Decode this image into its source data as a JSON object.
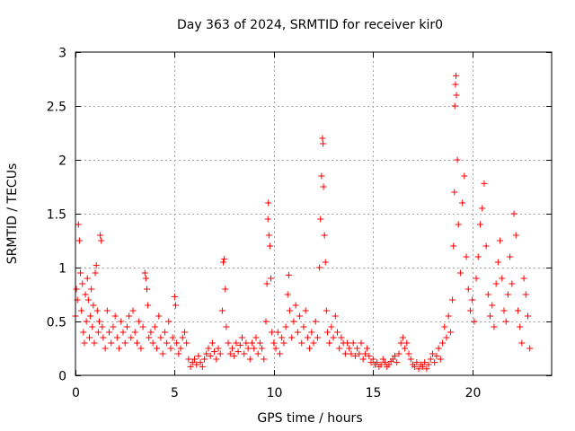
{
  "chart_data": {
    "type": "scatter",
    "title": "Day 363 of 2024, SRMTID for receiver kir0",
    "xlabel": "GPS time / hours",
    "ylabel": "SRMTID / TECUs",
    "xlim": [
      0,
      24
    ],
    "ylim": [
      0,
      3
    ],
    "xticks": [
      0,
      5,
      10,
      15,
      20
    ],
    "yticks": [
      0,
      0.5,
      1,
      1.5,
      2,
      2.5,
      3
    ],
    "xtick_labels": [
      "0",
      "5",
      "10",
      "15",
      "20"
    ],
    "ytick_labels": [
      "0",
      "0.5",
      "1",
      "1.5",
      "2",
      "2.5",
      "3"
    ],
    "grid": true,
    "marker": "+",
    "series": [
      {
        "name": "SRMTID",
        "color": "#ff0000",
        "points": [
          [
            0.0,
            0.55
          ],
          [
            0.05,
            0.8
          ],
          [
            0.1,
            0.7
          ],
          [
            0.15,
            1.4
          ],
          [
            0.2,
            1.25
          ],
          [
            0.25,
            0.95
          ],
          [
            0.3,
            0.6
          ],
          [
            0.35,
            0.85
          ],
          [
            0.4,
            0.4
          ],
          [
            0.45,
            0.3
          ],
          [
            0.5,
            0.75
          ],
          [
            0.55,
            0.5
          ],
          [
            0.6,
            0.9
          ],
          [
            0.65,
            0.7
          ],
          [
            0.7,
            0.35
          ],
          [
            0.75,
            0.55
          ],
          [
            0.8,
            0.8
          ],
          [
            0.85,
            0.45
          ],
          [
            0.9,
            0.65
          ],
          [
            0.95,
            0.3
          ],
          [
            1.0,
            0.95
          ],
          [
            1.05,
            1.02
          ],
          [
            1.1,
            0.6
          ],
          [
            1.15,
            0.4
          ],
          [
            1.2,
            0.5
          ],
          [
            1.25,
            1.3
          ],
          [
            1.3,
            1.25
          ],
          [
            1.35,
            0.45
          ],
          [
            1.4,
            0.35
          ],
          [
            1.5,
            0.25
          ],
          [
            1.6,
            0.6
          ],
          [
            1.7,
            0.4
          ],
          [
            1.8,
            0.3
          ],
          [
            1.9,
            0.45
          ],
          [
            2.0,
            0.55
          ],
          [
            2.1,
            0.35
          ],
          [
            2.2,
            0.25
          ],
          [
            2.3,
            0.5
          ],
          [
            2.4,
            0.4
          ],
          [
            2.5,
            0.3
          ],
          [
            2.6,
            0.45
          ],
          [
            2.7,
            0.55
          ],
          [
            2.8,
            0.35
          ],
          [
            2.9,
            0.6
          ],
          [
            3.0,
            0.4
          ],
          [
            3.1,
            0.3
          ],
          [
            3.2,
            0.5
          ],
          [
            3.3,
            0.25
          ],
          [
            3.4,
            0.45
          ],
          [
            3.5,
            0.95
          ],
          [
            3.55,
            0.9
          ],
          [
            3.6,
            0.8
          ],
          [
            3.65,
            0.65
          ],
          [
            3.7,
            0.35
          ],
          [
            3.8,
            0.4
          ],
          [
            3.9,
            0.3
          ],
          [
            4.0,
            0.45
          ],
          [
            4.1,
            0.25
          ],
          [
            4.2,
            0.55
          ],
          [
            4.3,
            0.35
          ],
          [
            4.4,
            0.2
          ],
          [
            4.5,
            0.4
          ],
          [
            4.6,
            0.3
          ],
          [
            4.7,
            0.5
          ],
          [
            4.8,
            0.25
          ],
          [
            4.9,
            0.35
          ],
          [
            5.0,
            0.73
          ],
          [
            5.05,
            0.65
          ],
          [
            5.1,
            0.3
          ],
          [
            5.2,
            0.2
          ],
          [
            5.3,
            0.25
          ],
          [
            5.4,
            0.35
          ],
          [
            5.5,
            0.4
          ],
          [
            5.6,
            0.3
          ],
          [
            5.7,
            0.15
          ],
          [
            5.8,
            0.08
          ],
          [
            5.9,
            0.12
          ],
          [
            6.0,
            0.15
          ],
          [
            6.1,
            0.1
          ],
          [
            6.2,
            0.18
          ],
          [
            6.3,
            0.12
          ],
          [
            6.4,
            0.08
          ],
          [
            6.5,
            0.15
          ],
          [
            6.6,
            0.2
          ],
          [
            6.7,
            0.25
          ],
          [
            6.8,
            0.18
          ],
          [
            6.9,
            0.3
          ],
          [
            7.0,
            0.22
          ],
          [
            7.1,
            0.15
          ],
          [
            7.2,
            0.25
          ],
          [
            7.3,
            0.2
          ],
          [
            7.4,
            0.6
          ],
          [
            7.45,
            1.05
          ],
          [
            7.5,
            1.08
          ],
          [
            7.55,
            0.8
          ],
          [
            7.6,
            0.45
          ],
          [
            7.7,
            0.3
          ],
          [
            7.8,
            0.2
          ],
          [
            7.9,
            0.25
          ],
          [
            8.0,
            0.18
          ],
          [
            8.1,
            0.3
          ],
          [
            8.2,
            0.22
          ],
          [
            8.3,
            0.28
          ],
          [
            8.4,
            0.35
          ],
          [
            8.5,
            0.2
          ],
          [
            8.6,
            0.3
          ],
          [
            8.7,
            0.25
          ],
          [
            8.8,
            0.15
          ],
          [
            8.9,
            0.3
          ],
          [
            9.0,
            0.25
          ],
          [
            9.1,
            0.35
          ],
          [
            9.2,
            0.2
          ],
          [
            9.3,
            0.3
          ],
          [
            9.4,
            0.25
          ],
          [
            9.5,
            0.15
          ],
          [
            9.6,
            0.5
          ],
          [
            9.65,
            0.85
          ],
          [
            9.7,
            1.45
          ],
          [
            9.72,
            1.6
          ],
          [
            9.75,
            1.3
          ],
          [
            9.8,
            1.2
          ],
          [
            9.85,
            0.9
          ],
          [
            9.9,
            0.4
          ],
          [
            10.0,
            0.3
          ],
          [
            10.1,
            0.25
          ],
          [
            10.2,
            0.4
          ],
          [
            10.3,
            0.2
          ],
          [
            10.4,
            0.35
          ],
          [
            10.5,
            0.3
          ],
          [
            10.6,
            0.45
          ],
          [
            10.7,
            0.75
          ],
          [
            10.75,
            0.93
          ],
          [
            10.8,
            0.6
          ],
          [
            10.9,
            0.35
          ],
          [
            11.0,
            0.5
          ],
          [
            11.1,
            0.65
          ],
          [
            11.2,
            0.4
          ],
          [
            11.3,
            0.55
          ],
          [
            11.4,
            0.3
          ],
          [
            11.5,
            0.45
          ],
          [
            11.6,
            0.6
          ],
          [
            11.7,
            0.35
          ],
          [
            11.8,
            0.25
          ],
          [
            11.9,
            0.4
          ],
          [
            12.0,
            0.3
          ],
          [
            12.1,
            0.5
          ],
          [
            12.2,
            0.35
          ],
          [
            12.3,
            1.0
          ],
          [
            12.35,
            1.45
          ],
          [
            12.4,
            1.85
          ],
          [
            12.45,
            2.2
          ],
          [
            12.48,
            2.15
          ],
          [
            12.5,
            1.75
          ],
          [
            12.55,
            1.3
          ],
          [
            12.6,
            1.05
          ],
          [
            12.65,
            0.6
          ],
          [
            12.7,
            0.4
          ],
          [
            12.8,
            0.3
          ],
          [
            12.9,
            0.45
          ],
          [
            13.0,
            0.35
          ],
          [
            13.1,
            0.55
          ],
          [
            13.2,
            0.4
          ],
          [
            13.3,
            0.25
          ],
          [
            13.4,
            0.35
          ],
          [
            13.5,
            0.3
          ],
          [
            13.6,
            0.2
          ],
          [
            13.7,
            0.3
          ],
          [
            13.8,
            0.25
          ],
          [
            13.9,
            0.2
          ],
          [
            14.0,
            0.3
          ],
          [
            14.1,
            0.18
          ],
          [
            14.2,
            0.25
          ],
          [
            14.3,
            0.2
          ],
          [
            14.4,
            0.3
          ],
          [
            14.5,
            0.15
          ],
          [
            14.6,
            0.2
          ],
          [
            14.7,
            0.25
          ],
          [
            14.8,
            0.18
          ],
          [
            14.9,
            0.12
          ],
          [
            15.0,
            0.15
          ],
          [
            15.1,
            0.1
          ],
          [
            15.2,
            0.12
          ],
          [
            15.3,
            0.08
          ],
          [
            15.4,
            0.1
          ],
          [
            15.5,
            0.15
          ],
          [
            15.6,
            0.12
          ],
          [
            15.7,
            0.08
          ],
          [
            15.8,
            0.1
          ],
          [
            15.9,
            0.13
          ],
          [
            16.0,
            0.15
          ],
          [
            16.1,
            0.18
          ],
          [
            16.2,
            0.12
          ],
          [
            16.3,
            0.2
          ],
          [
            16.4,
            0.3
          ],
          [
            16.5,
            0.35
          ],
          [
            16.6,
            0.25
          ],
          [
            16.7,
            0.3
          ],
          [
            16.8,
            0.2
          ],
          [
            16.9,
            0.15
          ],
          [
            17.0,
            0.1
          ],
          [
            17.1,
            0.08
          ],
          [
            17.2,
            0.12
          ],
          [
            17.3,
            0.06
          ],
          [
            17.4,
            0.1
          ],
          [
            17.5,
            0.08
          ],
          [
            17.6,
            0.12
          ],
          [
            17.7,
            0.06
          ],
          [
            17.8,
            0.1
          ],
          [
            17.9,
            0.15
          ],
          [
            18.0,
            0.2
          ],
          [
            18.1,
            0.12
          ],
          [
            18.2,
            0.18
          ],
          [
            18.3,
            0.25
          ],
          [
            18.4,
            0.15
          ],
          [
            18.5,
            0.3
          ],
          [
            18.6,
            0.45
          ],
          [
            18.7,
            0.35
          ],
          [
            18.8,
            0.55
          ],
          [
            18.9,
            0.4
          ],
          [
            19.0,
            0.7
          ],
          [
            19.05,
            1.2
          ],
          [
            19.1,
            1.7
          ],
          [
            19.12,
            2.5
          ],
          [
            19.15,
            2.7
          ],
          [
            19.18,
            2.78
          ],
          [
            19.2,
            2.6
          ],
          [
            19.25,
            2.0
          ],
          [
            19.3,
            1.4
          ],
          [
            19.4,
            0.95
          ],
          [
            19.5,
            1.6
          ],
          [
            19.6,
            1.85
          ],
          [
            19.7,
            1.1
          ],
          [
            19.8,
            0.8
          ],
          [
            19.9,
            0.6
          ],
          [
            20.0,
            0.7
          ],
          [
            20.1,
            0.5
          ],
          [
            20.2,
            0.9
          ],
          [
            20.3,
            1.1
          ],
          [
            20.4,
            1.4
          ],
          [
            20.5,
            1.55
          ],
          [
            20.6,
            1.78
          ],
          [
            20.7,
            1.2
          ],
          [
            20.8,
            0.75
          ],
          [
            20.9,
            0.55
          ],
          [
            21.0,
            0.65
          ],
          [
            21.1,
            0.45
          ],
          [
            21.2,
            0.85
          ],
          [
            21.3,
            1.05
          ],
          [
            21.4,
            1.25
          ],
          [
            21.5,
            0.9
          ],
          [
            21.6,
            0.6
          ],
          [
            21.7,
            0.5
          ],
          [
            21.8,
            0.75
          ],
          [
            21.9,
            1.1
          ],
          [
            22.0,
            0.85
          ],
          [
            22.1,
            1.5
          ],
          [
            22.2,
            1.3
          ],
          [
            22.3,
            0.6
          ],
          [
            22.4,
            0.45
          ],
          [
            22.5,
            0.3
          ],
          [
            22.6,
            0.9
          ],
          [
            22.7,
            0.75
          ],
          [
            22.8,
            0.55
          ],
          [
            22.9,
            0.25
          ]
        ]
      }
    ]
  }
}
